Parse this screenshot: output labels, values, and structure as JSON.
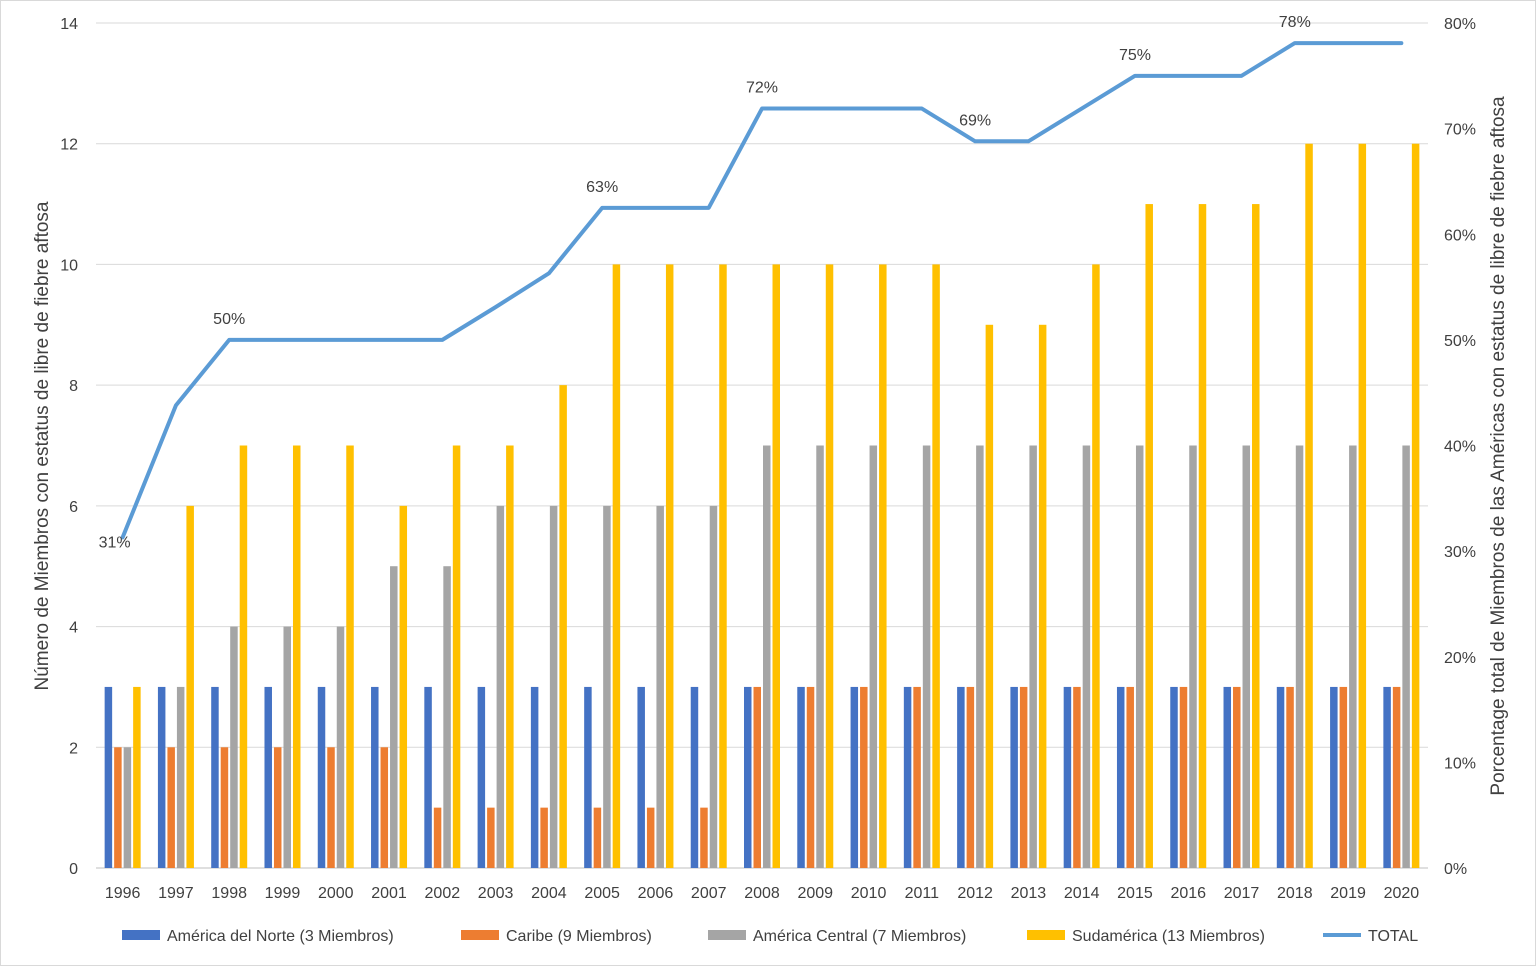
{
  "chart_data": {
    "type": "bar",
    "categories": [
      "1996",
      "1997",
      "1998",
      "1999",
      "2000",
      "2001",
      "2002",
      "2003",
      "2004",
      "2005",
      "2006",
      "2007",
      "2008",
      "2009",
      "2010",
      "2011",
      "2012",
      "2013",
      "2014",
      "2015",
      "2016",
      "2017",
      "2018",
      "2019",
      "2020"
    ],
    "series": [
      {
        "name": "América del Norte (3 Miembros)",
        "color": "#4472c4",
        "values": [
          3,
          3,
          3,
          3,
          3,
          3,
          3,
          3,
          3,
          3,
          3,
          3,
          3,
          3,
          3,
          3,
          3,
          3,
          3,
          3,
          3,
          3,
          3,
          3,
          3
        ]
      },
      {
        "name": "Caribe (9 Miembros)",
        "color": "#ed7d31",
        "values": [
          2,
          2,
          2,
          2,
          2,
          2,
          1,
          1,
          1,
          1,
          1,
          1,
          3,
          3,
          3,
          3,
          3,
          3,
          3,
          3,
          3,
          3,
          3,
          3,
          3
        ]
      },
      {
        "name": "América Central (7 Miembros)",
        "color": "#a5a5a5",
        "values": [
          2,
          3,
          4,
          4,
          4,
          5,
          5,
          6,
          6,
          6,
          6,
          6,
          7,
          7,
          7,
          7,
          7,
          7,
          7,
          7,
          7,
          7,
          7,
          7,
          7
        ]
      },
      {
        "name": "Sudamérica (13 Miembros)",
        "color": "#ffc000",
        "values": [
          3,
          6,
          7,
          7,
          7,
          6,
          7,
          7,
          8,
          10,
          10,
          10,
          10,
          10,
          10,
          10,
          9,
          9,
          10,
          11,
          11,
          11,
          12,
          12,
          12
        ]
      }
    ],
    "line": {
      "name": "TOTAL",
      "color": "#5b9bd5",
      "axis": "right",
      "values": [
        31.3,
        43.8,
        50.0,
        50.0,
        50.0,
        50.0,
        50.0,
        53.1,
        56.3,
        62.5,
        62.5,
        62.5,
        71.9,
        71.9,
        71.9,
        71.9,
        68.8,
        68.8,
        71.9,
        75.0,
        75.0,
        75.0,
        78.1,
        78.1,
        78.1
      ],
      "labels": [
        {
          "index": 0,
          "text": "31%"
        },
        {
          "index": 2,
          "text": "50%"
        },
        {
          "index": 9,
          "text": "63%"
        },
        {
          "index": 12,
          "text": "72%"
        },
        {
          "index": 16,
          "text": "69%"
        },
        {
          "index": 19,
          "text": "75%"
        },
        {
          "index": 22,
          "text": "78%"
        }
      ]
    },
    "y_left": {
      "label": "Número de Miembros con estatus de libre de fiebre aftosa",
      "range": [
        0,
        14
      ],
      "ticks": [
        "0",
        "2",
        "4",
        "6",
        "8",
        "10",
        "12",
        "14"
      ]
    },
    "y_right": {
      "label": "Porcentage total de Miembros de las Américas con estatus de libre de fiebre aftosa",
      "range": [
        0,
        80
      ],
      "ticks": [
        "0%",
        "10%",
        "20%",
        "30%",
        "40%",
        "50%",
        "60%",
        "70%",
        "80%"
      ]
    },
    "grid": true,
    "legend_position": "bottom"
  }
}
